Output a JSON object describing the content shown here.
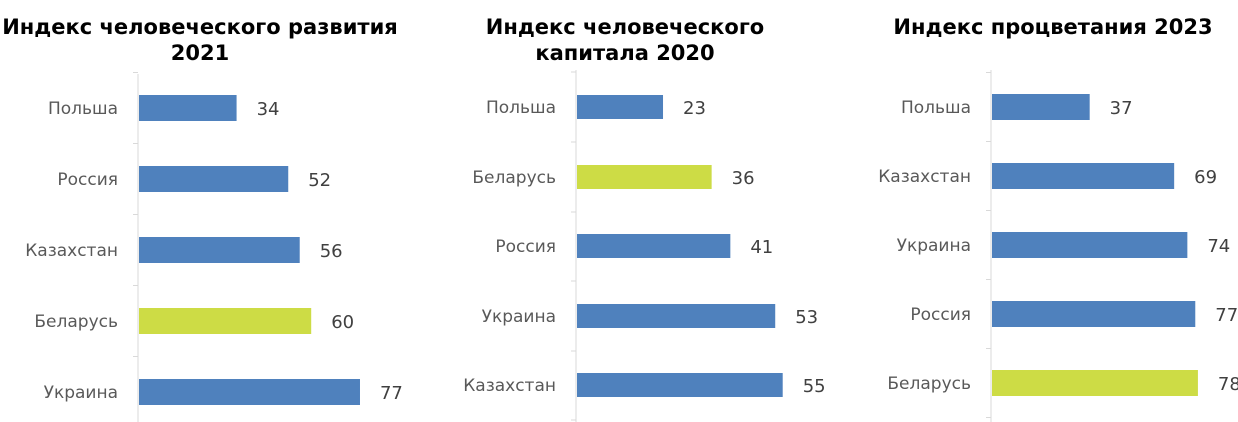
{
  "chart_data": [
    {
      "type": "bar",
      "orientation": "horizontal",
      "title": "Индекс человеческого развития 2021",
      "categories": [
        "Польша",
        "Россия",
        "Казахстан",
        "Беларусь",
        "Украина"
      ],
      "values": [
        34,
        52,
        56,
        60,
        77
      ],
      "highlight": "Беларусь",
      "value_labels": true,
      "grid": false
    },
    {
      "type": "bar",
      "orientation": "horizontal",
      "title": "Индекс человеческого капитала 2020",
      "categories": [
        "Польша",
        "Беларусь",
        "Россия",
        "Украина",
        "Казахстан"
      ],
      "values": [
        23,
        36,
        41,
        53,
        55
      ],
      "highlight": "Беларусь",
      "value_labels": true,
      "grid": false
    },
    {
      "type": "bar",
      "orientation": "horizontal",
      "title": "Индекс процветания 2023",
      "categories": [
        "Польша",
        "Казахстан",
        "Украина",
        "Россия",
        "Беларусь"
      ],
      "values": [
        37,
        69,
        74,
        77,
        78
      ],
      "highlight": "Беларусь",
      "value_labels": true,
      "grid": false
    }
  ],
  "colors": {
    "bar": "#4f81bd",
    "highlight": "#cddc45",
    "axis": "#d9d9d9"
  }
}
